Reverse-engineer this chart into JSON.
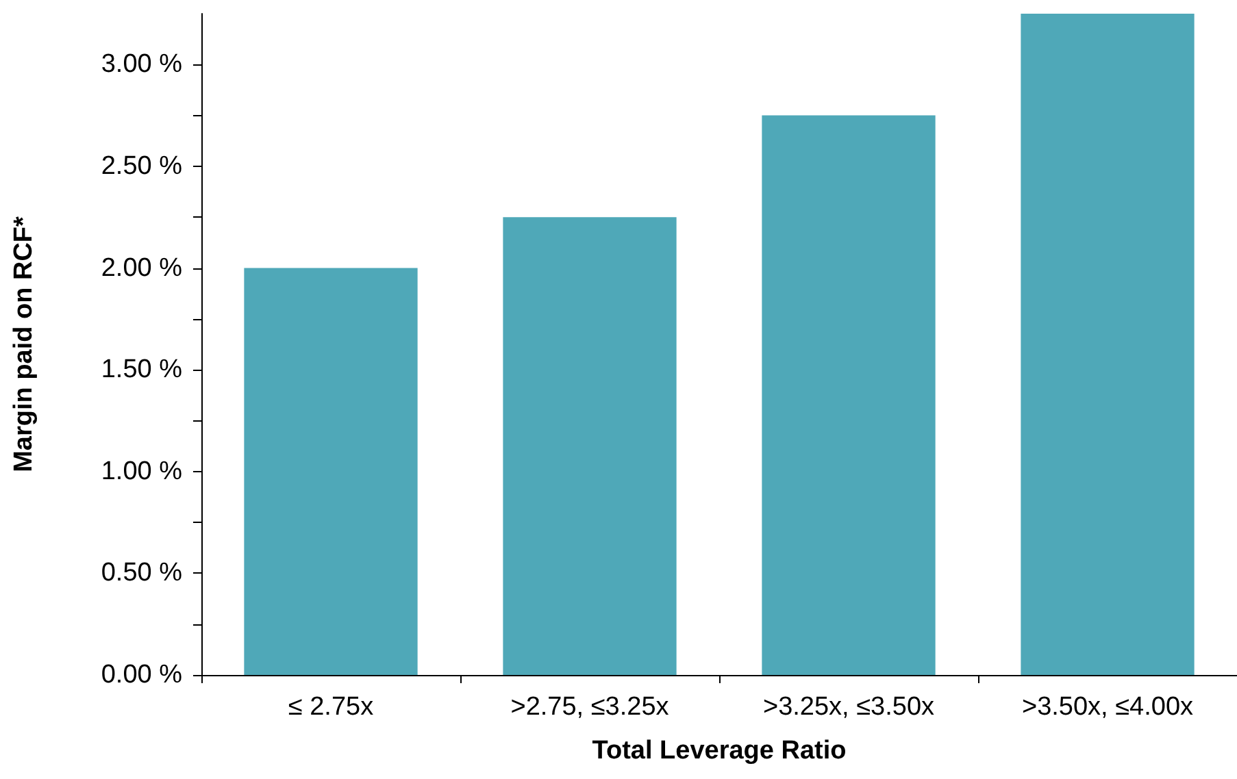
{
  "chart_data": {
    "type": "bar",
    "xlabel": "Total Leverage Ratio",
    "ylabel": "Margin paid on RCF*",
    "categories": [
      "≤ 2.75x",
      ">2.75, ≤3.25x",
      ">3.25x, ≤3.50x",
      ">3.50x, ≤4.00x"
    ],
    "values": [
      2.0,
      2.25,
      2.75,
      3.25
    ],
    "color": "#4fa8b8",
    "ylim": [
      0,
      3.25
    ],
    "yticks": [
      {
        "value": 0,
        "label": "0.00 %"
      },
      {
        "value": 0.25,
        "label": null
      },
      {
        "value": 0.5,
        "label": "0.50 %"
      },
      {
        "value": 0.75,
        "label": null
      },
      {
        "value": 1,
        "label": "1.00 %"
      },
      {
        "value": 1.25,
        "label": null
      },
      {
        "value": 1.5,
        "label": "1.50 %"
      },
      {
        "value": 1.75,
        "label": null
      },
      {
        "value": 2,
        "label": "2.00 %"
      },
      {
        "value": 2.25,
        "label": null
      },
      {
        "value": 2.5,
        "label": "2.50 %"
      },
      {
        "value": 2.75,
        "label": null
      },
      {
        "value": 3,
        "label": "3.00 %"
      }
    ],
    "grid": false
  }
}
